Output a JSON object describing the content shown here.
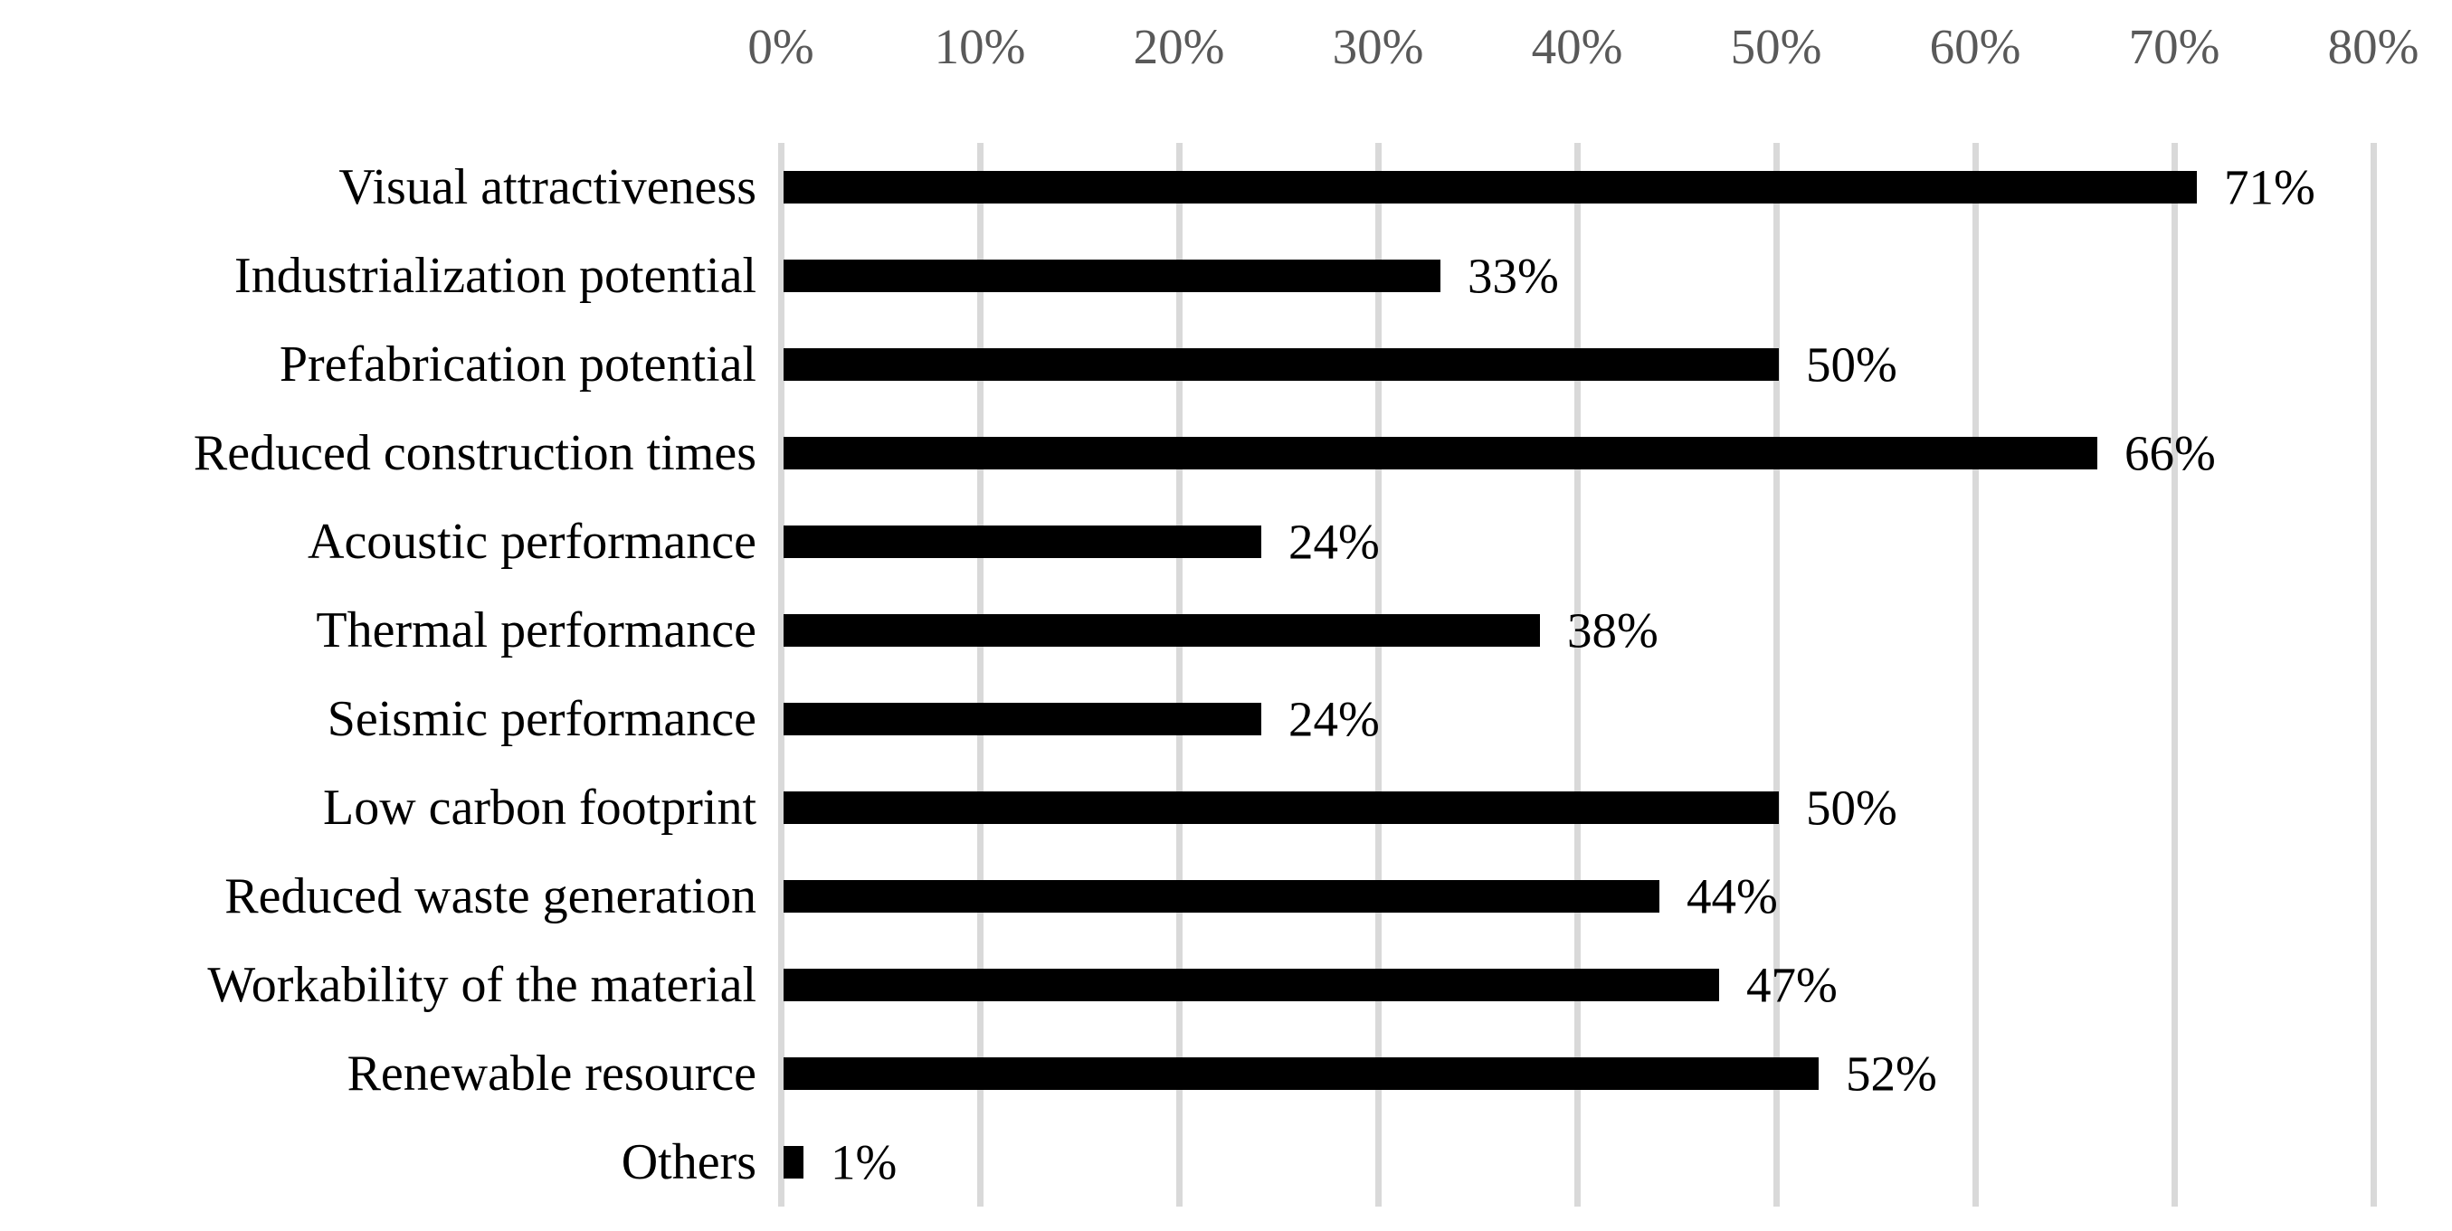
{
  "chart_data": {
    "type": "bar",
    "orientation": "horizontal",
    "title": "",
    "xlabel": "",
    "ylabel": "",
    "categories": [
      "Visual attractiveness",
      "Industrialization potential",
      "Prefabrication potential",
      "Reduced construction times",
      "Acoustic performance",
      "Thermal performance",
      "Seismic performance",
      "Low carbon footprint",
      "Reduced waste generation",
      "Workability of the material",
      "Renewable resource",
      "Others"
    ],
    "values": [
      71,
      33,
      50,
      66,
      24,
      38,
      24,
      50,
      44,
      47,
      52,
      1
    ],
    "value_labels": [
      "71%",
      "33%",
      "50%",
      "66%",
      "24%",
      "38%",
      "24%",
      "50%",
      "44%",
      "47%",
      "52%",
      "1%"
    ],
    "xlim": [
      0,
      80
    ],
    "x_ticks": [
      0,
      10,
      20,
      30,
      40,
      50,
      60,
      70,
      80
    ],
    "x_tick_labels": [
      "0%",
      "10%",
      "20%",
      "30%",
      "40%",
      "50%",
      "60%",
      "70%",
      "80%"
    ],
    "grid": "vertical-gridlines-on",
    "legend": "none",
    "colors": {
      "bar": "#000000",
      "gridline": "#d9d9d9",
      "tick_label": "#595959",
      "category_label": "#000000",
      "value_label": "#000000",
      "background": "#ffffff"
    }
  }
}
